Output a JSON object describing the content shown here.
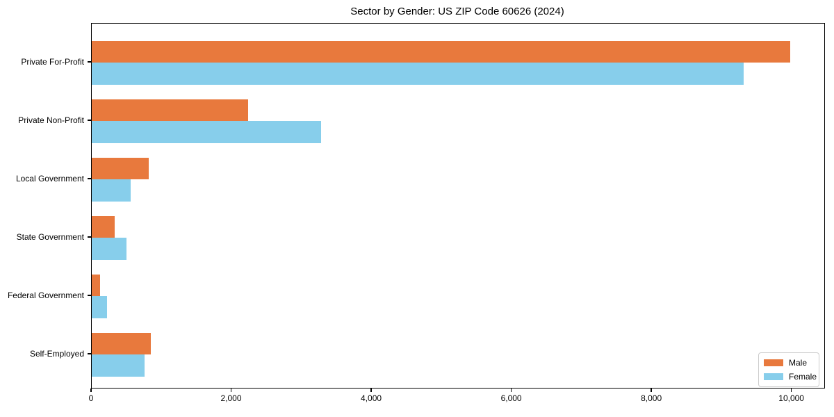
{
  "chart_data": {
    "type": "bar",
    "orientation": "horizontal",
    "title": "Sector by Gender: US ZIP Code 60626 (2024)",
    "xlabel": "",
    "ylabel": "",
    "categories": [
      "Private For-Profit",
      "Private Non-Profit",
      "Local Government",
      "State Government",
      "Federal Government",
      "Self-Employed"
    ],
    "series": [
      {
        "name": "Male",
        "color": "#e8793d",
        "values": [
          9970,
          2230,
          810,
          330,
          120,
          840
        ]
      },
      {
        "name": "Female",
        "color": "#87ceeb",
        "values": [
          9310,
          3270,
          560,
          500,
          220,
          750
        ]
      }
    ],
    "xlim": [
      0,
      10460
    ],
    "xticks": [
      0,
      2000,
      4000,
      6000,
      8000,
      10000
    ],
    "xtick_labels": [
      "0",
      "2,000",
      "4,000",
      "6,000",
      "8,000",
      "10,000"
    ],
    "grid": false,
    "legend_position": "lower right"
  },
  "legend": {
    "items": [
      {
        "label": "Male",
        "color": "#e8793d"
      },
      {
        "label": "Female",
        "color": "#87ceeb"
      }
    ]
  }
}
